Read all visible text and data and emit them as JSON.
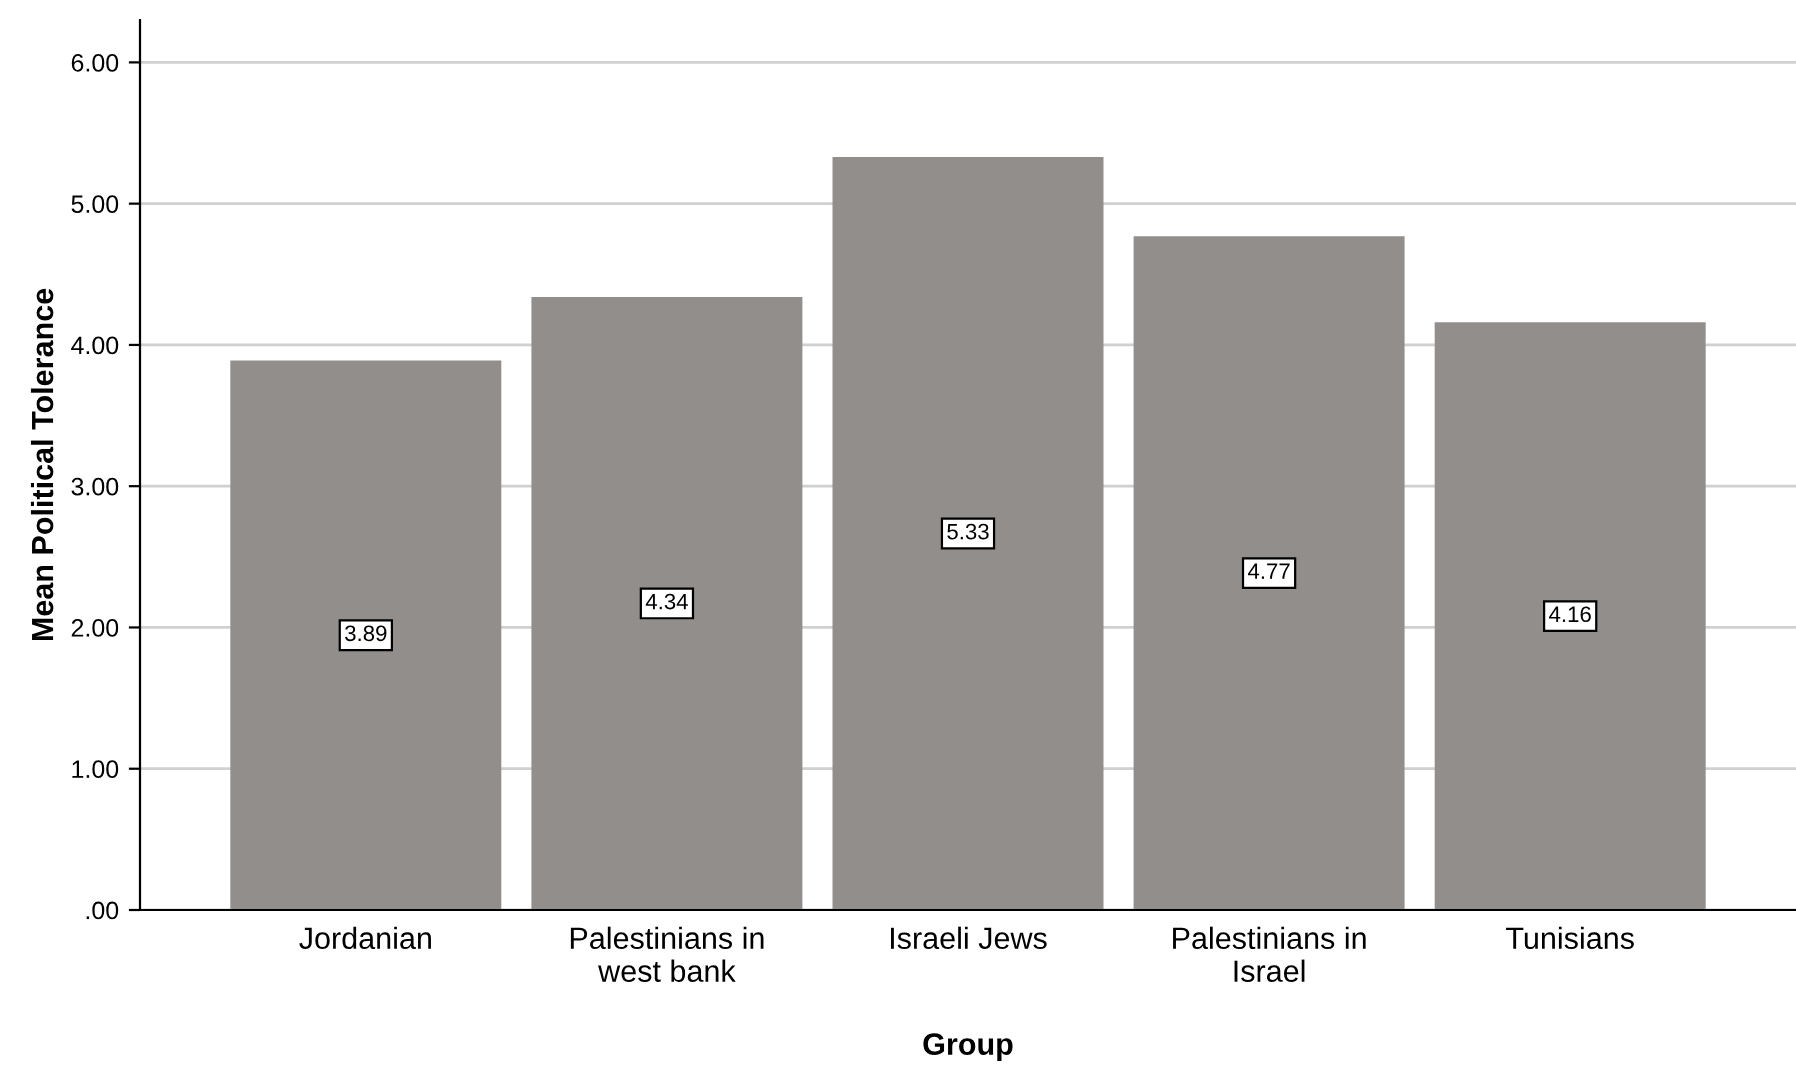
{
  "chart_data": {
    "type": "bar",
    "xlabel": "Group",
    "ylabel": "Mean Political Tolerance",
    "categories": [
      "Jordanian",
      "Palestinians in\nwest bank",
      "Israeli Jews",
      "Palestinians in\nIsrael",
      "Tunisians"
    ],
    "values": [
      3.89,
      4.34,
      5.33,
      4.77,
      4.16
    ],
    "color": "#928e8c",
    "ylim": [
      0,
      6.3
    ],
    "yticks": [
      {
        "value": 0,
        "label": ".00"
      },
      {
        "value": 1,
        "label": "1.00"
      },
      {
        "value": 2,
        "label": "2.00"
      },
      {
        "value": 3,
        "label": "3.00"
      },
      {
        "value": 4,
        "label": "4.00"
      },
      {
        "value": 5,
        "label": "5.00"
      },
      {
        "value": 6,
        "label": "6.00"
      }
    ],
    "grid": "y",
    "data_labels": true
  }
}
